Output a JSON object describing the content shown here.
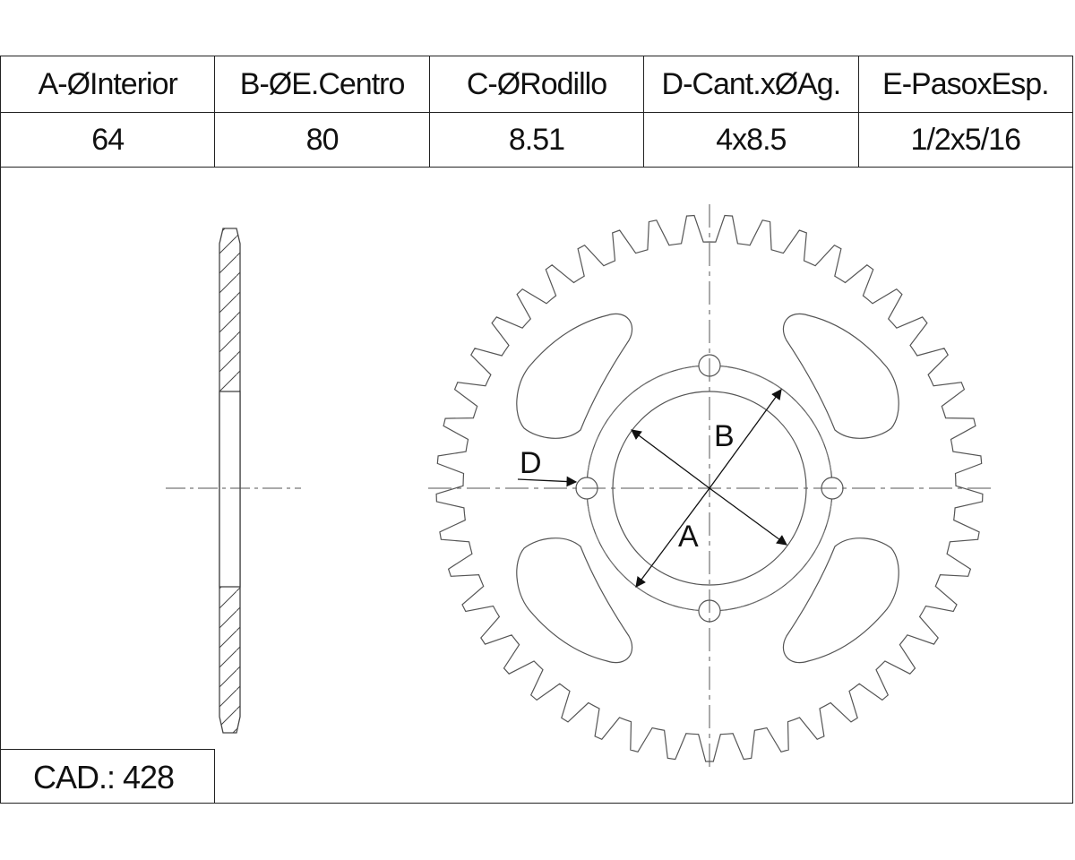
{
  "spec_table": {
    "headers": [
      "A-ØInterior",
      "B-ØE.Centro",
      "C-ØRodillo",
      "D-Cant.xØAg.",
      "E-PasoxEsp."
    ],
    "values": [
      "64",
      "80",
      "8.51",
      "4x8.5",
      "1/2x5/16"
    ]
  },
  "cad": "CAD.: 428",
  "labels": {
    "a": "A",
    "b": "B",
    "d": "D"
  },
  "sprocket": {
    "teeth": 45,
    "bolt_holes": 4,
    "lightening_holes": 4
  }
}
